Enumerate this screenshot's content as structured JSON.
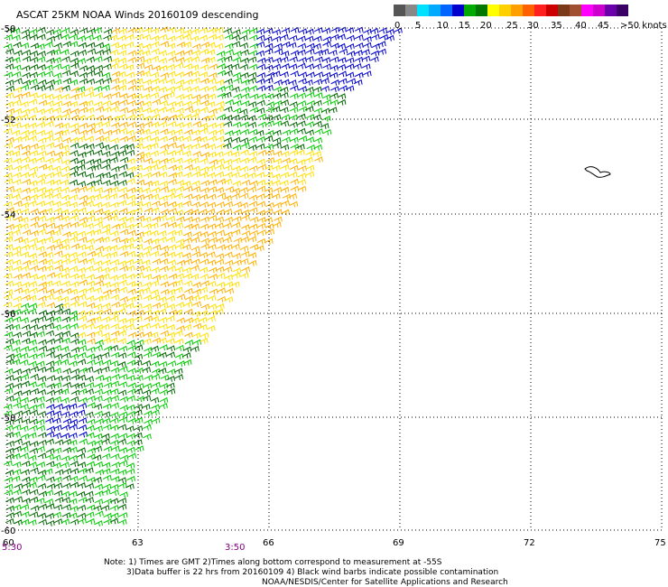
{
  "title": "ASCAT 25KM NOAA Winds 20160109 descending",
  "legend": {
    "colors": [
      "#555555",
      "#888888",
      "#00e0ff",
      "#00aaff",
      "#0066ff",
      "#0000cc",
      "#00aa00",
      "#007700",
      "#ffff00",
      "#ffd000",
      "#ffa000",
      "#ff6000",
      "#ff2020",
      "#cc0000",
      "#7a3a1a",
      "#a05030",
      "#ff00ff",
      "#cc00cc",
      "#6a00aa",
      "#3a0066"
    ],
    "labels": [
      "0",
      "5",
      "10",
      "15",
      "20",
      "25",
      "30",
      "35",
      "40",
      "45",
      ">50 knots"
    ]
  },
  "lat_labels": [
    "-50",
    "-52",
    "-54",
    "-56",
    "-58",
    "-60"
  ],
  "lon_labels": [
    "60",
    "63",
    "66",
    "69",
    "72",
    "75"
  ],
  "times": [
    "5:30",
    "3:50"
  ],
  "notes": [
    "Note: 1) Times are GMT 2)Times along bottom correspond to measurement at -55S",
    "3)Data buffer is 22 hrs from 20160109 4) Black wind barbs indicate possible contamination",
    "NOAA/NESDIS/Center for Satellite Applications and Research"
  ],
  "wind_colors": {
    "blue": "#0000cc",
    "green_light": "#00cc00",
    "green_dark": "#006600",
    "yellow": "#ffe000",
    "orange": "#ffb000"
  }
}
